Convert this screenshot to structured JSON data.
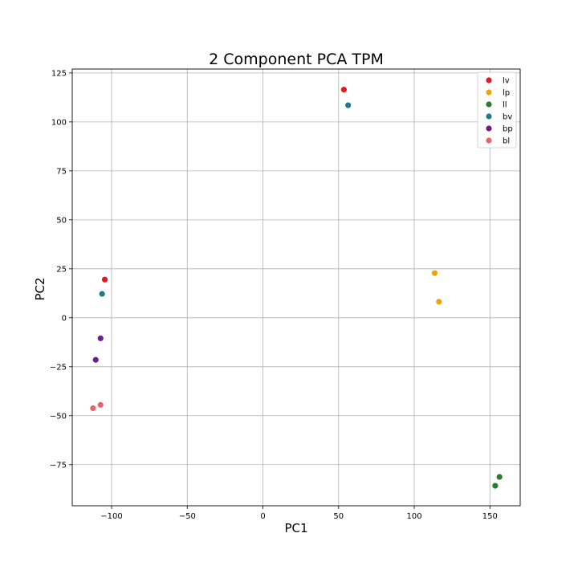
{
  "chart_data": {
    "type": "scatter",
    "title": "2 Component PCA TPM",
    "xlabel": "PC1",
    "ylabel": "PC2",
    "xlim": [
      -126,
      170
    ],
    "ylim": [
      -96,
      127
    ],
    "xticks": [
      -100,
      -50,
      0,
      50,
      100,
      150
    ],
    "yticks": [
      -75,
      -50,
      -25,
      0,
      25,
      50,
      75,
      100,
      125
    ],
    "xtick_labels": [
      "−100",
      "−50",
      "0",
      "50",
      "100",
      "150"
    ],
    "ytick_labels": [
      "−75",
      "−50",
      "−25",
      "0",
      "25",
      "50",
      "75",
      "100",
      "125"
    ],
    "grid": true,
    "legend_position": "top-right",
    "series": [
      {
        "name": "lv",
        "color": "#e31a1c",
        "points": [
          [
            -104.5,
            19.5
          ],
          [
            53.5,
            116.5
          ]
        ]
      },
      {
        "name": "lp",
        "color": "#f0a30a",
        "points": [
          [
            113.5,
            22.8
          ],
          [
            116.3,
            8.2
          ]
        ]
      },
      {
        "name": "ll",
        "color": "#2a7d2e",
        "points": [
          [
            153.5,
            -85.8
          ],
          [
            156.3,
            -81.3
          ]
        ]
      },
      {
        "name": "bv",
        "color": "#1f7a8c",
        "points": [
          [
            -106.3,
            12.2
          ],
          [
            56.3,
            108.5
          ]
        ]
      },
      {
        "name": "bp",
        "color": "#6a1f8a",
        "points": [
          [
            -107.3,
            -10.5
          ],
          [
            -110.5,
            -21.5
          ]
        ]
      },
      {
        "name": "bl",
        "color": "#e8646a",
        "points": [
          [
            -107.3,
            -44.5
          ],
          [
            -112.3,
            -46.2
          ]
        ]
      }
    ]
  }
}
